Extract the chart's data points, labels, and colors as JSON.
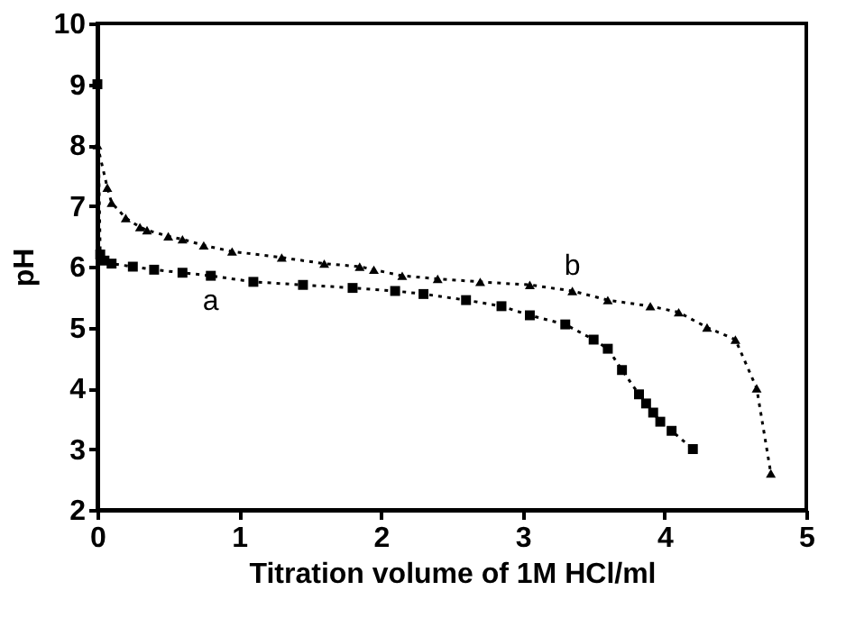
{
  "chart_data": {
    "type": "line",
    "xlabel": "Titration volume of 1M HCl/ml",
    "ylabel": "pH",
    "xlim": [
      0,
      5
    ],
    "xticks": [
      0,
      1,
      2,
      3,
      4,
      5
    ],
    "ylim": [
      2,
      10
    ],
    "yticks": [
      2,
      3,
      4,
      5,
      6,
      7,
      8,
      9,
      10
    ],
    "grid": false,
    "line_style": "dotted",
    "series": [
      {
        "color": "#000000",
        "marker": "square",
        "x": [
          0,
          0.02,
          0.05,
          0.1,
          0.25,
          0.4,
          0.6,
          0.8,
          1.1,
          1.45,
          1.8,
          2.1,
          2.3,
          2.6,
          2.85,
          3.05,
          3.3,
          3.5,
          3.6,
          3.7,
          3.82,
          3.87,
          3.92,
          3.97,
          4.05,
          4.2
        ],
        "values": [
          9.0,
          6.2,
          6.1,
          6.05,
          6.0,
          5.95,
          5.9,
          5.85,
          5.75,
          5.7,
          5.65,
          5.6,
          5.55,
          5.45,
          5.35,
          5.2,
          5.05,
          4.8,
          4.65,
          4.3,
          3.9,
          3.75,
          3.6,
          3.45,
          3.3,
          3.0
        ]
      },
      {
        "color": "#000000",
        "marker": "triangle",
        "x": [
          0,
          0.07,
          0.1,
          0.2,
          0.3,
          0.35,
          0.5,
          0.6,
          0.75,
          0.95,
          1.3,
          1.6,
          1.85,
          1.95,
          2.15,
          2.4,
          2.7,
          3.05,
          3.35,
          3.6,
          3.9,
          4.1,
          4.3,
          4.5,
          4.65,
          4.75
        ],
        "values": [
          8.0,
          7.3,
          7.05,
          6.8,
          6.65,
          6.6,
          6.5,
          6.45,
          6.35,
          6.25,
          6.15,
          6.05,
          6.0,
          5.95,
          5.85,
          5.8,
          5.75,
          5.7,
          5.6,
          5.45,
          5.35,
          5.25,
          5.0,
          4.8,
          4.0,
          2.6
        ]
      }
    ],
    "annotations": [
      "a",
      "b"
    ]
  }
}
